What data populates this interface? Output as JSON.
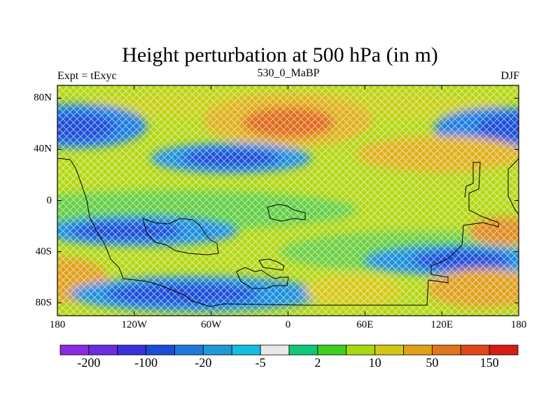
{
  "figure": {
    "title": "Height perturbation at 500 hPa (in m)",
    "left_subtitle": "Expt = tExyc",
    "center_subtitle": "530_0_MaBP",
    "right_subtitle": "DJF"
  },
  "map": {
    "lat_ticks": [
      {
        "lat": 80,
        "label": "80N"
      },
      {
        "lat": 40,
        "label": "40N"
      },
      {
        "lat": 0,
        "label": "0"
      },
      {
        "lat": -40,
        "label": "40S"
      },
      {
        "lat": -80,
        "label": "80S"
      }
    ],
    "lon_ticks": [
      {
        "lon": -180,
        "label": "180"
      },
      {
        "lon": -120,
        "label": "120W"
      },
      {
        "lon": -60,
        "label": "60W"
      },
      {
        "lon": 0,
        "label": "0"
      },
      {
        "lon": 60,
        "label": "60E"
      },
      {
        "lon": 120,
        "label": "120E"
      },
      {
        "lon": 180,
        "label": "180"
      }
    ],
    "lat_range": [
      -90,
      90
    ],
    "lon_range": [
      -180,
      180
    ],
    "field_features": [
      {
        "lat": 58,
        "lon": 5,
        "value": 140
      },
      {
        "lat": 60,
        "lon": -160,
        "value": -130
      },
      {
        "lat": 58,
        "lon": 165,
        "value": -130
      },
      {
        "lat": 33,
        "lon": -30,
        "value": -110
      },
      {
        "lat": 35,
        "lon": 115,
        "value": 90
      },
      {
        "lat": -22,
        "lon": -100,
        "value": -110
      },
      {
        "lat": -42,
        "lon": 135,
        "value": -150
      },
      {
        "lat": -62,
        "lon": -175,
        "value": 110
      },
      {
        "lat": -73,
        "lon": -80,
        "value": -140
      },
      {
        "lat": -72,
        "lon": 140,
        "value": 110
      },
      {
        "lat": -22,
        "lon": 165,
        "value": 80
      }
    ]
  },
  "colorbar": {
    "colors": [
      "#8a2be2",
      "#6a2ee0",
      "#3a30dc",
      "#1a4ed8",
      "#1f78dc",
      "#1e9ad8",
      "#14bde0",
      "#e8e8e8",
      "#10c878",
      "#3ed01c",
      "#a8d810",
      "#d2c814",
      "#e0a01a",
      "#e0761c",
      "#e04818",
      "#d81c12"
    ],
    "labels": [
      {
        "after_box": 1,
        "text": "-200"
      },
      {
        "after_box": 3,
        "text": "-100"
      },
      {
        "after_box": 5,
        "text": "-20"
      },
      {
        "after_box": 7,
        "text": "-5"
      },
      {
        "after_box": 9,
        "text": "2"
      },
      {
        "after_box": 11,
        "text": "10"
      },
      {
        "after_box": 13,
        "text": "50"
      },
      {
        "after_box": 15,
        "text": "150"
      }
    ]
  }
}
